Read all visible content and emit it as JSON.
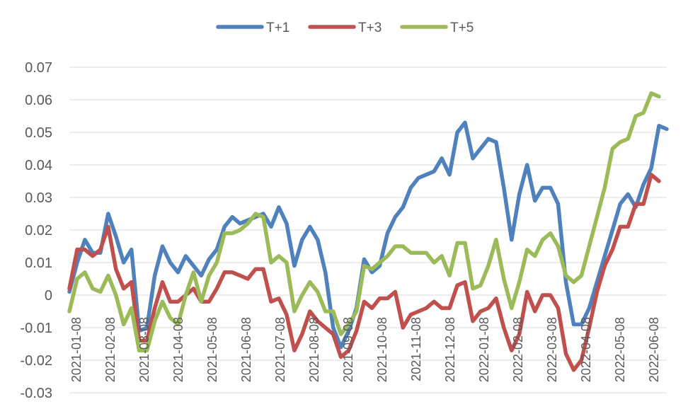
{
  "chart_data": {
    "type": "line",
    "title": "",
    "xlabel": "",
    "ylabel": "",
    "ylim": [
      -0.03,
      0.07
    ],
    "yticks": [
      0.07,
      0.06,
      0.05,
      0.04,
      0.03,
      0.02,
      0.01,
      0,
      -0.01,
      -0.02,
      -0.03
    ],
    "ytick_labels": [
      "0.07",
      "0.06",
      "0.05",
      "0.04",
      "0.03",
      "0.02",
      "0.01",
      "0",
      "-0.01",
      "-0.02",
      "-0.03"
    ],
    "xtick_labels": [
      "2021-01-08",
      "2021-02-08",
      "2021-03-08",
      "2021-04-08",
      "2021-05-08",
      "2021-06-08",
      "2021-07-08",
      "2021-08-08",
      "2021-09-08",
      "2021-10-08",
      "2021-11-08",
      "2021-12-08",
      "2022-01-08",
      "2022-02-08",
      "2022-03-08",
      "2022-04-08",
      "2022-05-08",
      "2022-06-08"
    ],
    "grid": true,
    "legend_position": "top-center",
    "series": [
      {
        "name": "T+1",
        "color": "#4f81bd",
        "values": [
          0.001,
          0.01,
          0.017,
          0.013,
          0.013,
          0.025,
          0.018,
          0.01,
          0.014,
          -0.011,
          -0.01,
          0.006,
          0.015,
          0.01,
          0.007,
          0.012,
          0.009,
          0.006,
          0.011,
          0.014,
          0.021,
          0.024,
          0.022,
          0.023,
          0.024,
          0.025,
          0.021,
          0.027,
          0.022,
          0.009,
          0.017,
          0.021,
          0.017,
          0.007,
          -0.01,
          -0.016,
          -0.011,
          -0.004,
          0.011,
          0.007,
          0.009,
          0.019,
          0.024,
          0.027,
          0.033,
          0.036,
          0.037,
          0.038,
          0.042,
          0.037,
          0.05,
          0.053,
          0.042,
          0.045,
          0.048,
          0.047,
          0.033,
          0.017,
          0.031,
          0.04,
          0.029,
          0.033,
          0.033,
          0.028,
          0.004,
          -0.009,
          -0.009,
          -0.004,
          0.004,
          0.012,
          0.02,
          0.028,
          0.031,
          0.027,
          0.034,
          0.039,
          0.052,
          0.051
        ]
      },
      {
        "name": "T+3",
        "color": "#c0504d",
        "values": [
          0.002,
          0.014,
          0.014,
          0.012,
          0.014,
          0.021,
          0.008,
          0.002,
          0.004,
          -0.014,
          -0.014,
          -0.004,
          0.004,
          -0.002,
          -0.002,
          0.0,
          0.002,
          -0.002,
          -0.002,
          0.002,
          0.007,
          0.007,
          0.006,
          0.005,
          0.008,
          0.008,
          -0.002,
          -0.001,
          -0.006,
          -0.017,
          -0.012,
          -0.005,
          -0.008,
          -0.01,
          -0.012,
          -0.019,
          -0.017,
          -0.011,
          -0.002,
          -0.004,
          -0.001,
          -0.001,
          0.001,
          -0.01,
          -0.006,
          -0.005,
          -0.004,
          -0.002,
          -0.004,
          -0.004,
          0.003,
          0.004,
          -0.008,
          -0.005,
          -0.004,
          -0.001,
          -0.01,
          -0.017,
          -0.012,
          0.001,
          -0.005,
          0.0,
          0.0,
          -0.004,
          -0.018,
          -0.023,
          -0.02,
          -0.01,
          0.001,
          0.009,
          0.014,
          0.021,
          0.021,
          0.028,
          0.028,
          0.037,
          0.035
        ]
      },
      {
        "name": "T+5",
        "color": "#9bbb59",
        "values": [
          -0.005,
          0.005,
          0.007,
          0.002,
          0.001,
          0.006,
          0.0,
          -0.009,
          -0.004,
          -0.017,
          -0.017,
          -0.008,
          -0.002,
          -0.007,
          -0.009,
          0.0,
          0.007,
          -0.002,
          0.006,
          0.01,
          0.019,
          0.019,
          0.02,
          0.022,
          0.025,
          0.024,
          0.01,
          0.012,
          0.01,
          -0.005,
          0.0,
          0.004,
          0.001,
          -0.005,
          -0.005,
          -0.012,
          -0.009,
          -0.005,
          0.009,
          0.008,
          0.01,
          0.012,
          0.015,
          0.015,
          0.013,
          0.013,
          0.013,
          0.01,
          0.012,
          0.006,
          0.016,
          0.016,
          0.002,
          0.003,
          0.009,
          0.017,
          0.005,
          -0.004,
          0.004,
          0.014,
          0.012,
          0.017,
          0.019,
          0.015,
          0.006,
          0.004,
          0.006,
          0.015,
          0.024,
          0.033,
          0.045,
          0.047,
          0.048,
          0.055,
          0.056,
          0.062,
          0.061
        ]
      }
    ]
  }
}
